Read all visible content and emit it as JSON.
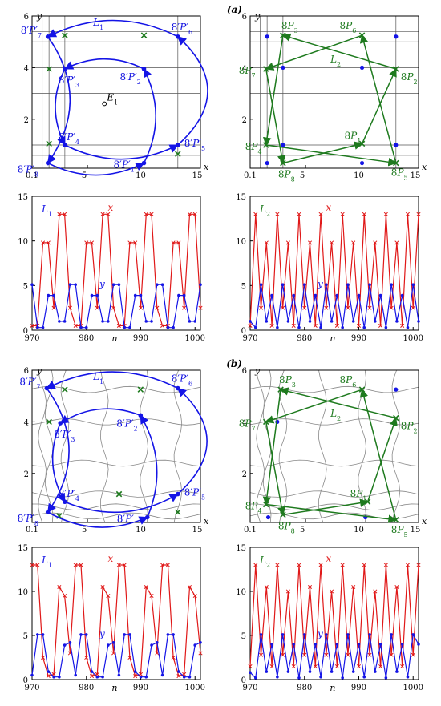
{
  "colors": {
    "blue": "#1414e6",
    "green": "#1e7a1e",
    "red": "#e01818",
    "grid": "#555555",
    "curve": "#888888"
  },
  "chart_data": [
    {
      "id": "a-left-phase",
      "type": "line",
      "panel_label": "",
      "xlabel": "x",
      "ylabel": "y",
      "xlim": [
        0.1,
        15
      ],
      "ylim": [
        0.1,
        6
      ],
      "x_ticks": [
        "0.1",
        "5",
        "10",
        "15"
      ],
      "y_ticks": [
        "2",
        "4",
        "6"
      ],
      "grid_x": [
        1,
        1.6,
        3,
        10,
        13
      ],
      "grid_y": [
        0.3,
        0.6,
        1,
        3,
        4,
        5,
        5.4
      ],
      "fixed_point": {
        "label": "E1",
        "x": 6.5,
        "y": 2.6
      },
      "cycle_label": "L1",
      "points": [
        {
          "label": "8P′1",
          "x": 10,
          "y": 0.3
        },
        {
          "label": "8P′2",
          "x": 10,
          "y": 3.95
        },
        {
          "label": "8P′3",
          "x": 3,
          "y": 3.95
        },
        {
          "label": "8P′4",
          "x": 3,
          "y": 1
        },
        {
          "label": "8P′5",
          "x": 13,
          "y": 1
        },
        {
          "label": "8P′6",
          "x": 13,
          "y": 5.2
        },
        {
          "label": "8P′7",
          "x": 1.5,
          "y": 5.2
        },
        {
          "label": "8P′8",
          "x": 1.5,
          "y": 0.3
        }
      ],
      "saddles": [
        [
          1.6,
          1.05
        ],
        [
          1.6,
          3.95
        ],
        [
          3,
          5.25
        ],
        [
          10,
          5.25
        ],
        [
          13,
          0.65
        ]
      ]
    },
    {
      "id": "a-right-phase",
      "type": "line",
      "panel_label": "(a)",
      "xlabel": "x",
      "ylabel": "y",
      "xlim": [
        0.1,
        15
      ],
      "ylim": [
        0.1,
        6
      ],
      "x_ticks": [
        "0.1",
        "5",
        "10",
        "15"
      ],
      "y_ticks": [
        "2",
        "4",
        "6"
      ],
      "grid_x": [
        1,
        1.6,
        3,
        10,
        13
      ],
      "grid_y": [
        0.3,
        0.6,
        1,
        3,
        4,
        5,
        5.4
      ],
      "cycle_label": "L2",
      "points": [
        {
          "label": "8P1",
          "x": 10,
          "y": 1.05
        },
        {
          "label": "8P2",
          "x": 13,
          "y": 3.95
        },
        {
          "label": "8P3",
          "x": 3,
          "y": 5.25
        },
        {
          "label": "8P4",
          "x": 1.5,
          "y": 1
        },
        {
          "label": "8P5",
          "x": 13,
          "y": 0.3
        },
        {
          "label": "8P6",
          "x": 10,
          "y": 5.25
        },
        {
          "label": "8P7",
          "x": 1.5,
          "y": 3.95
        },
        {
          "label": "8P8",
          "x": 3,
          "y": 0.3
        }
      ],
      "nodes": [
        [
          3,
          1
        ],
        [
          3,
          4
        ],
        [
          10,
          4
        ],
        [
          1.6,
          5.2
        ],
        [
          13,
          5.2
        ],
        [
          1.6,
          0.3
        ],
        [
          10,
          0.3
        ],
        [
          13,
          1
        ]
      ]
    },
    {
      "id": "a-left-series",
      "type": "line",
      "xlabel": "n",
      "xlim": [
        970,
        1001
      ],
      "ylim": [
        0,
        15
      ],
      "x_ticks": [
        "970",
        "980",
        "990",
        "1000"
      ],
      "y_ticks": [
        "0",
        "5",
        "10",
        "15"
      ],
      "label": "L1",
      "series": [
        {
          "name": "x",
          "values": [
            0.5,
            0.5,
            9.8,
            9.8,
            2.5,
            13,
            13,
            2.5,
            0.5,
            0.5,
            9.8,
            9.8,
            2.5,
            13,
            13,
            2.5,
            0.5,
            0.5,
            9.8,
            9.8,
            2.5,
            13,
            13,
            2.5,
            0.5,
            0.5,
            9.8,
            9.8,
            2.5,
            13,
            13,
            2.5
          ]
        },
        {
          "name": "y",
          "values": [
            5.1,
            0.3,
            0.3,
            3.9,
            3.9,
            1,
            1,
            5.1,
            5.1,
            0.3,
            0.3,
            3.9,
            3.9,
            1,
            1,
            5.1,
            5.1,
            0.3,
            0.3,
            3.9,
            3.9,
            1,
            1,
            5.1,
            5.1,
            0.3,
            0.3,
            3.9,
            3.9,
            1,
            1,
            5.1
          ]
        }
      ]
    },
    {
      "id": "a-right-series",
      "type": "line",
      "xlabel": "n",
      "xlim": [
        970,
        1001
      ],
      "ylim": [
        0,
        15
      ],
      "x_ticks": [
        "970",
        "980",
        "990",
        "1000"
      ],
      "y_ticks": [
        "0",
        "5",
        "10",
        "15"
      ],
      "label": "L2",
      "series": [
        {
          "name": "x",
          "values": [
            0.5,
            13,
            2.5,
            9.8,
            0.5,
            13,
            2.5,
            9.8,
            0.5,
            13,
            2.5,
            9.8,
            0.5,
            13,
            2.5,
            9.8,
            0.5,
            13,
            2.5,
            9.8,
            0.5,
            13,
            2.5,
            9.8,
            0.5,
            13,
            2.5,
            9.8,
            0.5,
            13,
            2.5,
            13
          ]
        },
        {
          "name": "y",
          "values": [
            1,
            0.3,
            5.1,
            1,
            3.9,
            0.3,
            5.1,
            1,
            3.9,
            0.3,
            5.1,
            1,
            3.9,
            0.3,
            5.1,
            1,
            3.9,
            0.3,
            5.1,
            1,
            3.9,
            0.3,
            5.1,
            1,
            3.9,
            0.3,
            5.1,
            1,
            3.9,
            0.3,
            5.1,
            1
          ]
        }
      ]
    },
    {
      "id": "b-left-phase",
      "type": "line",
      "panel_label": "",
      "xlabel": "x",
      "ylabel": "y",
      "xlim": [
        0.1,
        15
      ],
      "ylim": [
        0.1,
        6
      ],
      "x_ticks": [
        "0.1",
        "5",
        "10",
        "15"
      ],
      "y_ticks": [
        "2",
        "4",
        "6"
      ],
      "cycle_label": "L1",
      "points": [
        {
          "label": "8P′1",
          "x": 10.3,
          "y": 0.3
        },
        {
          "label": "8P′2",
          "x": 9.7,
          "y": 4.25
        },
        {
          "label": "8P′3",
          "x": 2.6,
          "y": 3.95
        },
        {
          "label": "8P′4",
          "x": 3,
          "y": 0.9
        },
        {
          "label": "8P′5",
          "x": 13,
          "y": 1.2
        },
        {
          "label": "8P′6",
          "x": 13,
          "y": 5.3
        },
        {
          "label": "8P′7",
          "x": 1.4,
          "y": 5.3
        },
        {
          "label": "8P′8",
          "x": 1.5,
          "y": 0.5
        }
      ],
      "saddles": [
        [
          1.6,
          4
        ],
        [
          3,
          5.25
        ],
        [
          9.7,
          5.25
        ],
        [
          2.5,
          0.35
        ],
        [
          7.8,
          1.2
        ],
        [
          13,
          0.5
        ]
      ]
    },
    {
      "id": "b-right-phase",
      "type": "line",
      "panel_label": "(b)",
      "xlabel": "x",
      "ylabel": "y",
      "xlim": [
        0.1,
        15
      ],
      "ylim": [
        0.1,
        6
      ],
      "x_ticks": [
        "0.1",
        "5",
        "10",
        "15"
      ],
      "y_ticks": [
        "2",
        "4",
        "6"
      ],
      "cycle_label": "L2",
      "points": [
        {
          "label": "8P1",
          "x": 10.5,
          "y": 0.9
        },
        {
          "label": "8P2",
          "x": 13,
          "y": 4.15
        },
        {
          "label": "8P3",
          "x": 2.8,
          "y": 5.25
        },
        {
          "label": "8P4",
          "x": 1.5,
          "y": 0.8
        },
        {
          "label": "8P5",
          "x": 13,
          "y": 0.2
        },
        {
          "label": "8P6",
          "x": 10,
          "y": 5.25
        },
        {
          "label": "8P7",
          "x": 1.5,
          "y": 4
        },
        {
          "label": "8P8",
          "x": 3,
          "y": 0.4
        }
      ],
      "nodes": [
        [
          2.5,
          4
        ],
        [
          13,
          5.25
        ],
        [
          10.3,
          0.3
        ],
        [
          1.7,
          0.3
        ]
      ]
    },
    {
      "id": "b-left-series",
      "type": "line",
      "xlabel": "n",
      "xlim": [
        970,
        1001
      ],
      "ylim": [
        0,
        15
      ],
      "x_ticks": [
        "970",
        "980",
        "990",
        "1000"
      ],
      "y_ticks": [
        "0",
        "5",
        "10",
        "15"
      ],
      "label": "L1",
      "series": [
        {
          "name": "x",
          "values": [
            13,
            13,
            2.5,
            0.4,
            0.6,
            10.5,
            9.5,
            3,
            13,
            13,
            2.5,
            0.4,
            0.6,
            10.5,
            9.5,
            3,
            13,
            13,
            2.5,
            0.4,
            0.6,
            10.5,
            9.5,
            3,
            13,
            13,
            2.5,
            0.4,
            0.6,
            10.5,
            9.5,
            3
          ]
        },
        {
          "name": "y",
          "values": [
            0.5,
            5.1,
            5.1,
            0.9,
            0.3,
            0.3,
            3.9,
            4.2,
            0.5,
            5.1,
            5.1,
            0.9,
            0.3,
            0.3,
            3.9,
            4.2,
            0.5,
            5.1,
            5.1,
            0.9,
            0.3,
            0.3,
            3.9,
            4.2,
            0.5,
            5.1,
            5.1,
            0.9,
            0.3,
            0.3,
            3.9,
            4.2
          ]
        }
      ]
    },
    {
      "id": "b-right-series",
      "type": "line",
      "xlabel": "n",
      "xlim": [
        970,
        1001
      ],
      "ylim": [
        0,
        15
      ],
      "x_ticks": [
        "970",
        "980",
        "990",
        "1000"
      ],
      "y_ticks": [
        "0",
        "5",
        "10",
        "15"
      ],
      "label": "L2",
      "series": [
        {
          "name": "x",
          "values": [
            1.5,
            13,
            2.8,
            10.5,
            1.5,
            13,
            2.8,
            10,
            1.5,
            13,
            2.8,
            10.5,
            1.5,
            13,
            2.8,
            10,
            1.5,
            13,
            2.8,
            10.5,
            1.5,
            13,
            2.8,
            10,
            1.5,
            13,
            2.8,
            10.5,
            1.5,
            13,
            2.8,
            13
          ]
        },
        {
          "name": "y",
          "values": [
            0.8,
            0.2,
            5.1,
            0.9,
            4,
            0.3,
            5.1,
            0.9,
            4,
            0.2,
            5.1,
            0.9,
            4,
            0.3,
            5.1,
            0.9,
            4,
            0.2,
            5.1,
            0.9,
            4,
            0.3,
            5.1,
            0.9,
            4,
            0.2,
            5.1,
            0.9,
            4,
            0.3,
            5.1,
            4
          ]
        }
      ]
    }
  ]
}
